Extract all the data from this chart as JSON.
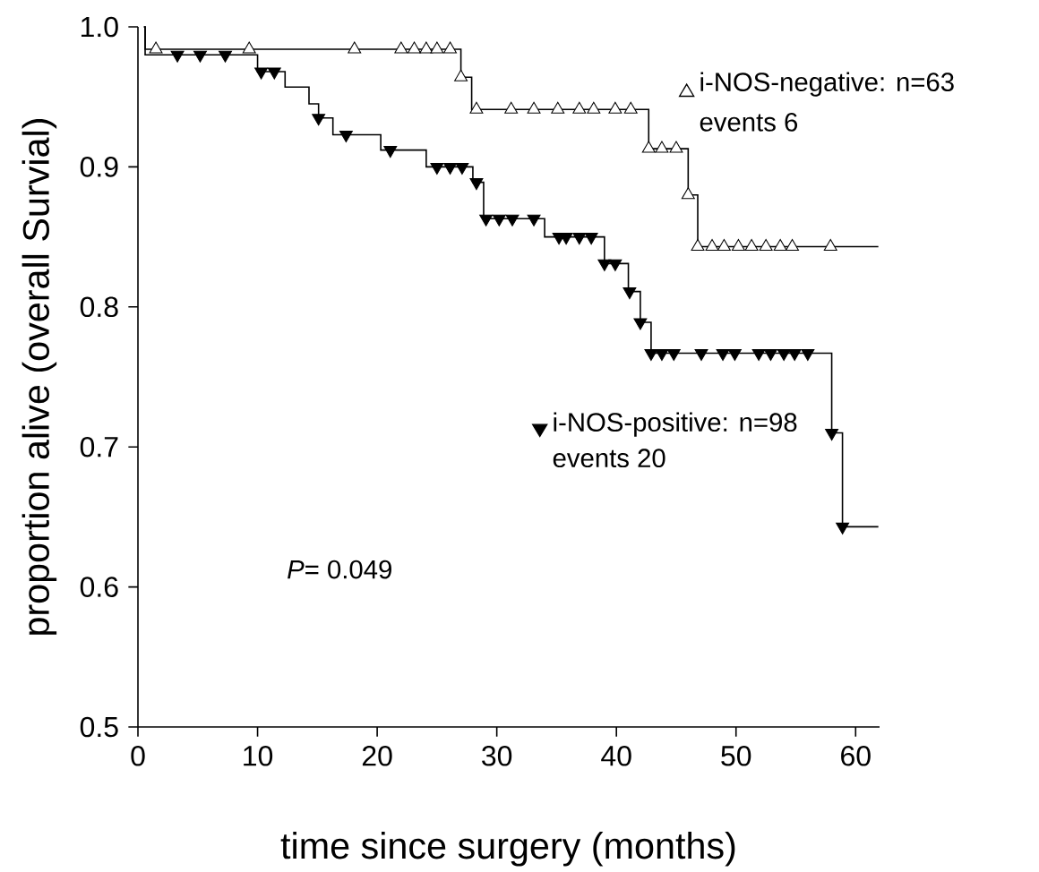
{
  "chart_data": {
    "type": "step",
    "xlabel": "time since surgery (months)",
    "ylabel": "proportion alive (overall Survial)",
    "xlim": [
      0,
      62
    ],
    "ylim": [
      0.5,
      1.0
    ],
    "xticks": [
      0,
      10,
      20,
      30,
      40,
      50,
      60
    ],
    "yticks": [
      {
        "value": 0.5,
        "label": "0.5"
      },
      {
        "value": 0.6,
        "label": "0.6"
      },
      {
        "value": 0.7,
        "label": "0.7"
      },
      {
        "value": 0.8,
        "label": "0.8"
      },
      {
        "value": 0.9,
        "label": "0.9"
      },
      {
        "value": 1.0,
        "label": "1.0"
      }
    ],
    "series": [
      {
        "type": "step",
        "color": "#000000",
        "marker": "none",
        "x": [
          0.5,
          0.6,
          27.0,
          27.9,
          42.7,
          46.0,
          46.8,
          61.9
        ],
        "values": [
          1.0,
          0.984,
          0.964,
          0.941,
          0.913,
          0.88,
          0.843,
          0.843
        ]
      },
      {
        "type": "scatter",
        "name": "i-NOS-negative: n=63",
        "color": "#000000",
        "marker": "triangle",
        "x": [
          1.5,
          9.3,
          18.1,
          22.0,
          23.1,
          24.1,
          25.0,
          26.1,
          27.0,
          28.3,
          31.2,
          33.1,
          35.1,
          36.9,
          38.1,
          39.9,
          41.2,
          42.7,
          43.8,
          45.0,
          46.0,
          46.8,
          48.0,
          49.0,
          50.2,
          51.3,
          52.5,
          53.7,
          54.7,
          57.9
        ],
        "values": [
          0.984,
          0.984,
          0.984,
          0.984,
          0.984,
          0.984,
          0.984,
          0.984,
          0.964,
          0.941,
          0.941,
          0.941,
          0.941,
          0.941,
          0.941,
          0.941,
          0.941,
          0.913,
          0.913,
          0.913,
          0.88,
          0.843,
          0.843,
          0.843,
          0.843,
          0.843,
          0.843,
          0.843,
          0.843,
          0.843
        ]
      },
      {
        "type": "step",
        "color": "#000000",
        "marker": "none",
        "x": [
          0.5,
          0.6,
          10.0,
          12.3,
          14.3,
          15.1,
          16.3,
          20.3,
          24.1,
          28.0,
          28.9,
          34.0,
          39.0,
          41.0,
          42.0,
          42.9,
          58.0,
          58.9,
          61.9
        ],
        "values": [
          1.0,
          0.98,
          0.968,
          0.957,
          0.945,
          0.935,
          0.923,
          0.912,
          0.9,
          0.889,
          0.863,
          0.85,
          0.831,
          0.811,
          0.789,
          0.767,
          0.71,
          0.643,
          0.643
        ]
      },
      {
        "type": "scatter",
        "name": "i-NOS-positive: n=98",
        "color": "#000000",
        "marker": "triangle-down",
        "x": [
          3.3,
          5.2,
          7.3,
          10.3,
          11.4,
          15.1,
          17.4,
          21.1,
          25.0,
          26.1,
          27.1,
          28.3,
          29.1,
          30.2,
          31.3,
          33.1,
          35.2,
          35.8,
          36.9,
          37.9,
          39.0,
          39.9,
          41.1,
          42.0,
          42.9,
          43.8,
          44.8,
          47.1,
          48.9,
          49.9,
          51.9,
          52.9,
          54.0,
          54.9,
          56.0,
          58.0,
          58.9
        ],
        "values": [
          0.98,
          0.98,
          0.98,
          0.968,
          0.968,
          0.935,
          0.923,
          0.912,
          0.9,
          0.9,
          0.9,
          0.889,
          0.863,
          0.863,
          0.863,
          0.863,
          0.85,
          0.85,
          0.85,
          0.85,
          0.831,
          0.831,
          0.811,
          0.789,
          0.767,
          0.767,
          0.767,
          0.767,
          0.767,
          0.767,
          0.767,
          0.767,
          0.767,
          0.767,
          0.767,
          0.71,
          0.643
        ]
      }
    ],
    "legend": "right",
    "annotations": [
      "*P*= 0.049",
      "events 6",
      "events 20"
    ]
  }
}
